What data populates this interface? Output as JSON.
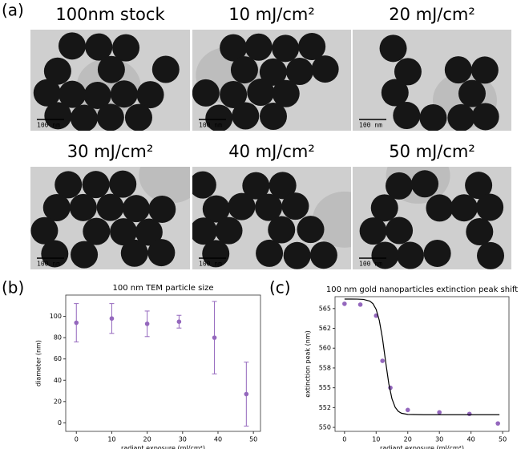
{
  "panel_labels": [
    "(a)",
    "(b)",
    "(c)"
  ],
  "tem_images": [
    {
      "title": "100nm stock",
      "scale_bar": "100 nm"
    },
    {
      "title": "10 mJ/cm²",
      "scale_bar": "100 nm"
    },
    {
      "title": "20 mJ/cm²",
      "scale_bar": "100 nm"
    },
    {
      "title": "30 mJ/cm²",
      "scale_bar": "100 nm"
    },
    {
      "title": "40 mJ/cm²",
      "scale_bar": "100 nm"
    },
    {
      "title": "50 mJ/cm²",
      "scale_bar": "100 nm"
    }
  ],
  "chart_data": [
    {
      "type": "errorbar",
      "title": "100 nm TEM particle size",
      "x_label": "radiant exposure (mJ/cm²)",
      "y_label": "diameter (nm)",
      "series": [
        {
          "color": "#9467bd",
          "x": [
            0,
            10,
            20,
            29,
            39,
            48
          ],
          "values": [
            94,
            98,
            93,
            95,
            80,
            27
          ],
          "errors": [
            18,
            14,
            12,
            6,
            34,
            30
          ]
        }
      ],
      "xlim": [
        -3,
        52
      ],
      "xticks": [
        0,
        10,
        20,
        30,
        40,
        50
      ],
      "ylim": [
        -8,
        120
      ],
      "yticks": [
        0,
        20,
        40,
        60,
        80,
        100
      ]
    },
    {
      "type": "scatter",
      "title": "100 nm gold nanoparticles extinction peak shift",
      "x_label": "radiant exposure (mJ/cm²)",
      "y_label": "extinction peak (nm)",
      "series": [
        {
          "style": "markers",
          "color": "#9467bd",
          "x": [
            0,
            5,
            10,
            12,
            14.5,
            20,
            30,
            39.5,
            48.5
          ],
          "values": [
            565.6,
            565.5,
            564.1,
            558.4,
            555.0,
            552.2,
            551.9,
            551.7,
            550.5
          ]
        },
        {
          "style": "line",
          "color": "#000000",
          "x": [
            0,
            2,
            4,
            6,
            8,
            9,
            10,
            11,
            12,
            13,
            14,
            15,
            16,
            17,
            18,
            20,
            25,
            30,
            40,
            49
          ],
          "values": [
            566.2,
            566.2,
            566.19,
            566.15,
            565.94,
            565.61,
            564.9,
            563.5,
            561.25,
            558.3,
            555.52,
            553.61,
            552.55,
            552.03,
            551.79,
            551.64,
            551.6,
            551.6,
            551.6,
            551.6
          ]
        }
      ],
      "xlim": [
        -3,
        52
      ],
      "xticks": [
        0,
        10,
        20,
        30,
        40,
        50
      ],
      "ylim": [
        549.5,
        566.5
      ],
      "yticks": [
        550,
        {
          "value": 552.5,
          "label": "552"
        },
        555,
        {
          "value": 557.5,
          "label": "558"
        },
        560,
        {
          "value": 562.5,
          "label": "562"
        },
        565
      ]
    }
  ]
}
